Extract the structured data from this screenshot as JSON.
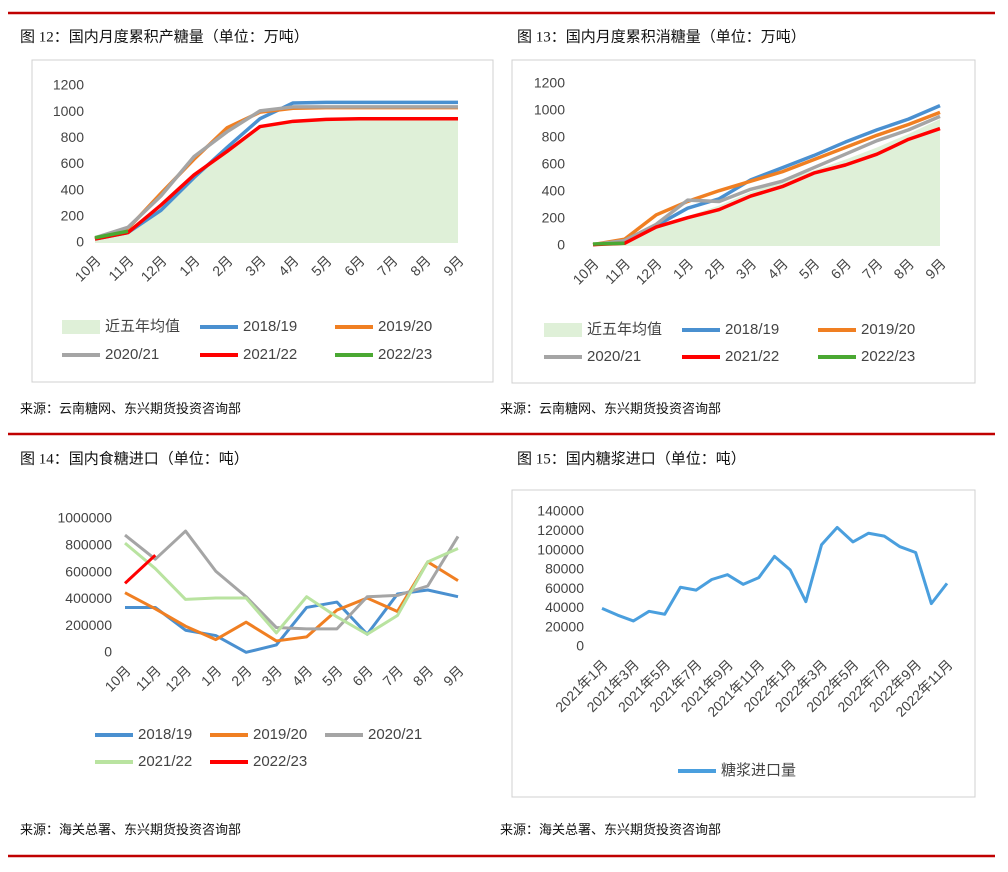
{
  "chart_data": [
    {
      "type": "line",
      "title": "图 12：国内月度累积产糖量（单位：万吨）",
      "source": "来源：云南糖网、东兴期货投资咨询部",
      "categories": [
        "10月",
        "11月",
        "12月",
        "1月",
        "2月",
        "3月",
        "4月",
        "5月",
        "6月",
        "7月",
        "8月",
        "9月"
      ],
      "ylim": [
        0,
        1200
      ],
      "yticks": [
        0,
        200,
        400,
        600,
        800,
        1000,
        1200
      ],
      "grid": false,
      "series": [
        {
          "name": "近五年均值",
          "color": "#dff0d8",
          "area": true,
          "values": [
            30,
            100,
            300,
            530,
            720,
            890,
            940,
            950,
            950,
            950,
            950,
            950
          ]
        },
        {
          "name": "2018/19",
          "color": "#4a90d0",
          "values": [
            30,
            80,
            250,
            500,
            730,
            950,
            1070,
            1075,
            1075,
            1075,
            1075,
            1075
          ]
        },
        {
          "name": "2019/20",
          "color": "#f07f22",
          "values": [
            30,
            110,
            380,
            640,
            880,
            1000,
            1030,
            1035,
            1035,
            1035,
            1035,
            1035
          ]
        },
        {
          "name": "2020/21",
          "color": "#a5a5a5",
          "values": [
            40,
            120,
            360,
            660,
            850,
            1010,
            1040,
            1040,
            1040,
            1040,
            1040,
            1040
          ]
        },
        {
          "name": "2021/22",
          "color": "#ff0000",
          "values": [
            30,
            80,
            290,
            520,
            700,
            890,
            930,
            945,
            950,
            950,
            950,
            950
          ]
        },
        {
          "name": "2022/23",
          "color": "#4aa832",
          "values": [
            40,
            90,
            null,
            null,
            null,
            null,
            null,
            null,
            null,
            null,
            null,
            null
          ]
        }
      ]
    },
    {
      "type": "line",
      "title": "图 13：国内月度累积消糖量（单位：万吨）",
      "source": "来源：云南糖网、东兴期货投资咨询部",
      "categories": [
        "10月",
        "11月",
        "12月",
        "1月",
        "2月",
        "3月",
        "4月",
        "5月",
        "6月",
        "7月",
        "8月",
        "9月"
      ],
      "ylim": [
        0,
        1200
      ],
      "yticks": [
        0,
        200,
        400,
        600,
        800,
        1000,
        1200
      ],
      "grid": false,
      "series": [
        {
          "name": "近五年均值",
          "color": "#dff0d8",
          "area": true,
          "values": [
            10,
            40,
            130,
            220,
            300,
            400,
            480,
            560,
            640,
            730,
            830,
            940
          ]
        },
        {
          "name": "2018/19",
          "color": "#4a90d0",
          "values": [
            10,
            30,
            150,
            280,
            350,
            490,
            580,
            670,
            770,
            860,
            940,
            1040
          ]
        },
        {
          "name": "2019/20",
          "color": "#f07f22",
          "values": [
            10,
            50,
            230,
            330,
            410,
            480,
            550,
            640,
            730,
            820,
            900,
            990
          ]
        },
        {
          "name": "2020/21",
          "color": "#a5a5a5",
          "values": [
            10,
            40,
            160,
            340,
            330,
            420,
            480,
            580,
            680,
            780,
            860,
            960
          ]
        },
        {
          "name": "2021/22",
          "color": "#ff0000",
          "values": [
            10,
            20,
            140,
            210,
            270,
            370,
            440,
            540,
            600,
            680,
            790,
            870
          ]
        },
        {
          "name": "2022/23",
          "color": "#4aa832",
          "values": [
            15,
            20,
            null,
            null,
            null,
            null,
            null,
            null,
            null,
            null,
            null,
            null
          ]
        }
      ]
    },
    {
      "type": "line",
      "title": "图 14：国内食糖进口（单位：吨）",
      "source": "来源：海关总署、东兴期货投资咨询部",
      "categories": [
        "10月",
        "11月",
        "12月",
        "1月",
        "2月",
        "3月",
        "4月",
        "5月",
        "6月",
        "7月",
        "8月",
        "9月"
      ],
      "ylim": [
        0,
        1000000
      ],
      "yticks": [
        0,
        200000,
        400000,
        600000,
        800000,
        1000000
      ],
      "grid": false,
      "series": [
        {
          "name": "2018/19",
          "color": "#4a90d0",
          "values": [
            340000,
            340000,
            170000,
            130000,
            5000,
            60000,
            340000,
            380000,
            140000,
            440000,
            470000,
            420000
          ]
        },
        {
          "name": "2019/20",
          "color": "#f07f22",
          "values": [
            450000,
            330000,
            200000,
            100000,
            230000,
            90000,
            120000,
            320000,
            410000,
            310000,
            680000,
            540000
          ]
        },
        {
          "name": "2020/21",
          "color": "#a5a5a5",
          "values": [
            880000,
            700000,
            910000,
            610000,
            420000,
            190000,
            180000,
            180000,
            420000,
            430000,
            500000,
            870000
          ]
        },
        {
          "name": "2021/22",
          "color": "#b9e3a0",
          "values": [
            820000,
            630000,
            400000,
            410000,
            410000,
            150000,
            420000,
            270000,
            140000,
            280000,
            680000,
            780000
          ]
        },
        {
          "name": "2022/23",
          "color": "#ff0000",
          "values": [
            520000,
            730000,
            null,
            null,
            null,
            null,
            null,
            null,
            null,
            null,
            null,
            null
          ]
        }
      ]
    },
    {
      "type": "line",
      "title": "图 15：国内糖浆进口（单位：吨）",
      "source": "来源：海关总署、东兴期货投资咨询部",
      "categories": [
        "2021年1月",
        null,
        "2021年3月",
        null,
        "2021年5月",
        null,
        "2021年7月",
        null,
        "2021年9月",
        null,
        "2021年11月",
        null,
        "2022年1月",
        null,
        "2022年3月",
        null,
        "2022年5月",
        null,
        "2022年7月",
        null,
        "2022年9月",
        null,
        "2022年11月"
      ],
      "ylim": [
        0,
        140000
      ],
      "yticks": [
        0,
        20000,
        40000,
        60000,
        80000,
        100000,
        120000,
        140000
      ],
      "grid": false,
      "series": [
        {
          "name": "糖浆进口量",
          "color": "#4a9fde",
          "values": [
            40000,
            33000,
            27000,
            37000,
            34000,
            62000,
            59000,
            70000,
            75000,
            65000,
            72000,
            94000,
            80000,
            47000,
            106000,
            124000,
            109000,
            118000,
            115000,
            104000,
            98000,
            45000,
            66000
          ]
        }
      ]
    }
  ]
}
